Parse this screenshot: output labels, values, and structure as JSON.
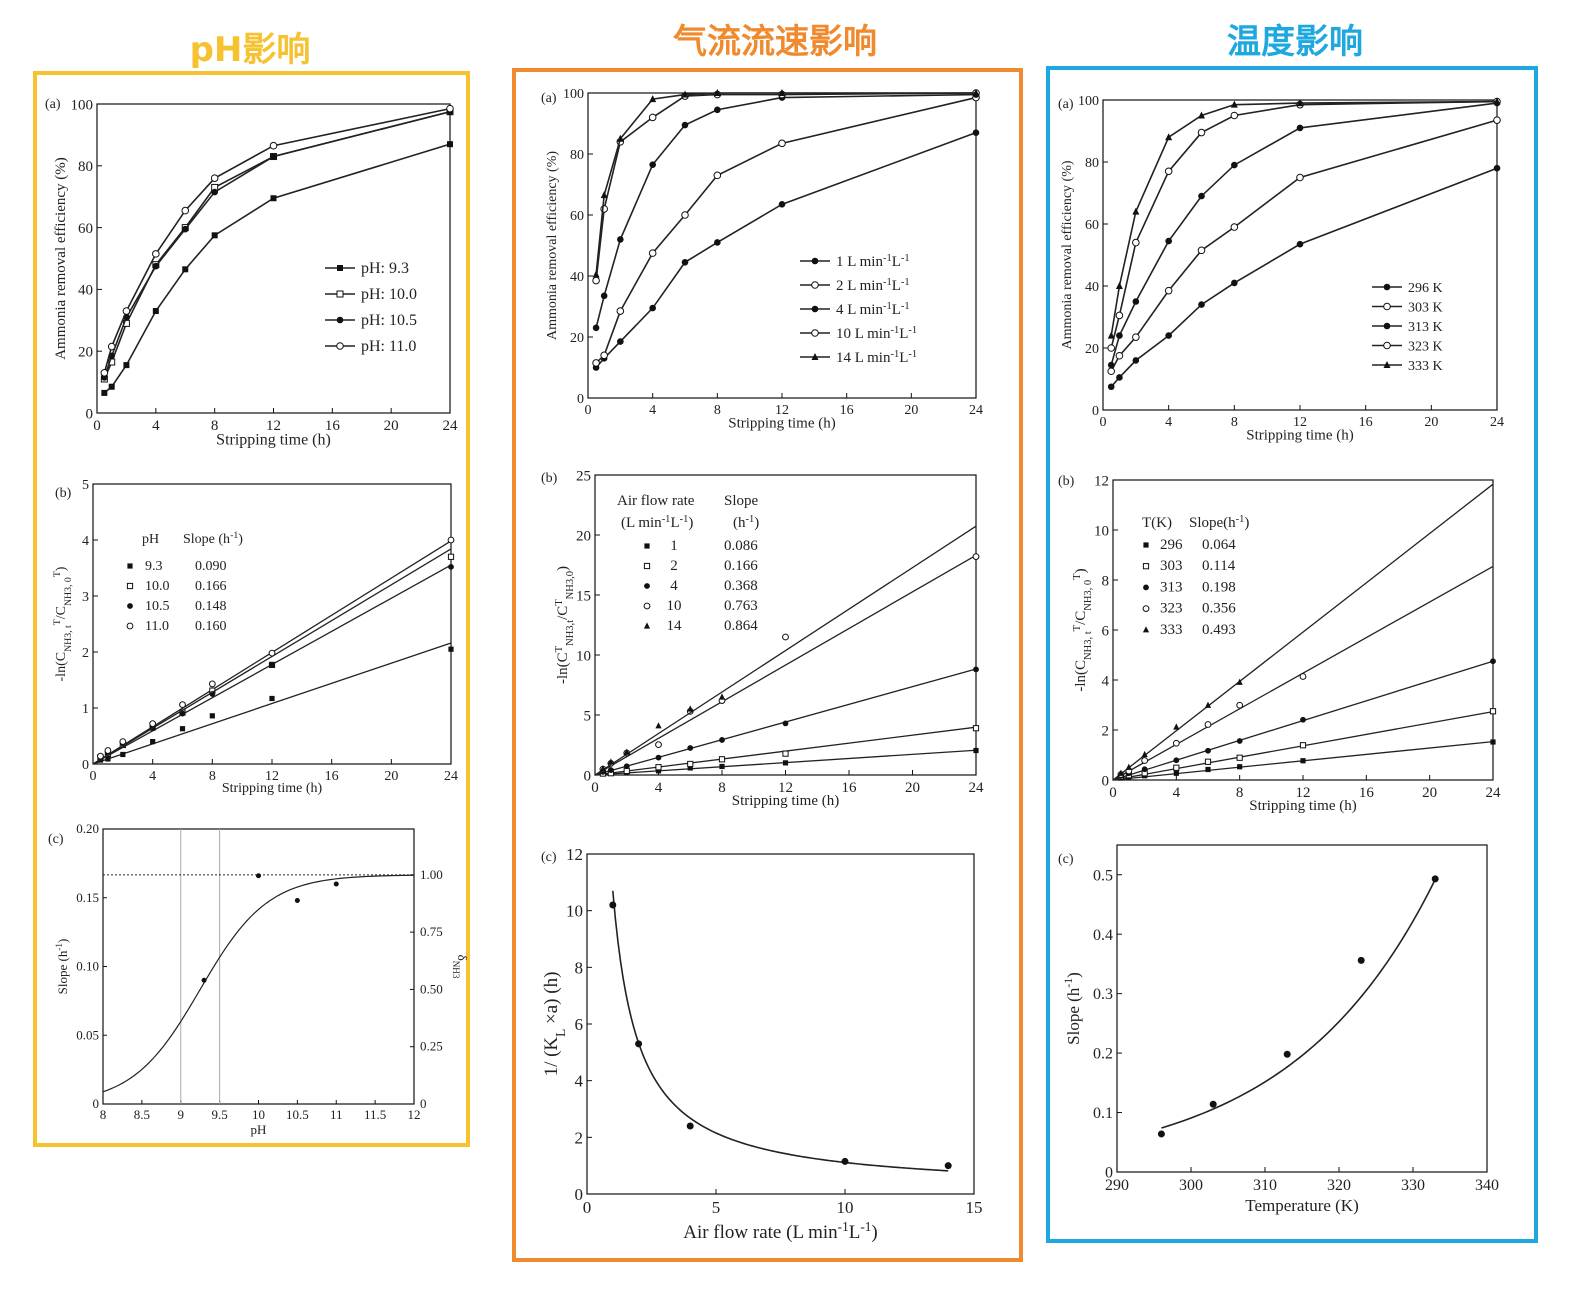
{
  "titles": [
    "pH影响",
    "气流流速影响",
    "温度影响"
  ],
  "title_colors": [
    "#f6c230",
    "#f08a2e",
    "#1ea8e0"
  ],
  "chart_data": [
    {
      "panel": "(a)",
      "type": "line",
      "xlabel": "Stripping time (h)",
      "ylabel": "Ammonia removal efficiency (%)",
      "xticks": [
        0,
        4,
        8,
        12,
        16,
        20,
        24
      ],
      "yticks": [
        0,
        20,
        40,
        60,
        80,
        100
      ],
      "xlim": [
        0,
        24
      ],
      "ylim": [
        0,
        100
      ],
      "legend_position": "right-middle",
      "series": [
        {
          "name": "pH: 9.3",
          "marker": "square",
          "x": [
            0.5,
            1,
            2,
            4,
            6,
            8,
            12,
            24
          ],
          "y": [
            6.5,
            8.5,
            15.5,
            33,
            46.5,
            57.5,
            69.5,
            87
          ]
        },
        {
          "name": "pH: 10.0",
          "marker": "open-square",
          "x": [
            0.5,
            1,
            2,
            4,
            6,
            8,
            12,
            24
          ],
          "y": [
            11,
            16.5,
            29,
            48,
            60,
            73,
            83,
            97.5
          ]
        },
        {
          "name": "pH: 10.5",
          "marker": "circle",
          "x": [
            0.5,
            1,
            2,
            4,
            6,
            8,
            12,
            24
          ],
          "y": [
            11.5,
            18.5,
            31,
            47.5,
            59.5,
            71.5,
            83,
            97.5
          ]
        },
        {
          "name": "pH: 11.0",
          "marker": "open-circle",
          "x": [
            0.5,
            1,
            2,
            4,
            6,
            8,
            12,
            24
          ],
          "y": [
            13,
            21.5,
            33,
            51.5,
            65.5,
            76,
            86.5,
            98.5
          ]
        }
      ]
    },
    {
      "panel": "(b)",
      "type": "scatter",
      "xlabel": "Stripping time (h)",
      "ylabel": "-ln(C",
      "xticks": [
        0,
        4,
        8,
        12,
        16,
        20,
        24
      ],
      "yticks": [
        0,
        1,
        2,
        3,
        4,
        5
      ],
      "xlim": [
        0,
        24
      ],
      "ylim": [
        0,
        5
      ],
      "legend_headers": [
        "pH",
        "Slope (h"
      ],
      "legend_rows": [
        [
          "9.3",
          "0.090"
        ],
        [
          "10.0",
          "0.166"
        ],
        [
          "10.5",
          "0.148"
        ],
        [
          "11.0",
          "0.160"
        ]
      ],
      "series": [
        {
          "name": "9.3",
          "marker": "square",
          "slope": 0.09,
          "x": [
            0.5,
            1,
            2,
            4,
            6,
            8,
            12,
            24
          ],
          "y": [
            0.07,
            0.09,
            0.17,
            0.4,
            0.63,
            0.86,
            1.17,
            2.05
          ]
        },
        {
          "name": "10.0",
          "marker": "open-square",
          "slope": 0.166,
          "x": [
            0.5,
            1,
            2,
            4,
            6,
            8,
            12,
            24
          ],
          "y": [
            0.12,
            0.18,
            0.34,
            0.65,
            0.92,
            1.31,
            1.77,
            3.7
          ]
        },
        {
          "name": "10.5",
          "marker": "circle",
          "slope": 0.148,
          "x": [
            0.5,
            1,
            2,
            4,
            6,
            8,
            12,
            24
          ],
          "y": [
            0.12,
            0.2,
            0.37,
            0.64,
            0.9,
            1.25,
            1.77,
            3.52
          ]
        },
        {
          "name": "11.0",
          "marker": "open-circle",
          "slope": 0.16,
          "x": [
            0.5,
            1,
            2,
            4,
            6,
            8,
            12,
            24
          ],
          "y": [
            0.14,
            0.24,
            0.4,
            0.72,
            1.06,
            1.43,
            1.98,
            4.0
          ]
        }
      ]
    },
    {
      "panel": "(c)",
      "type": "line",
      "xlabel": "pH",
      "ylabel": "Slope (h",
      "y2label": "δ",
      "xticks": [
        "8",
        "8.5",
        "9",
        "9.5",
        "10",
        "10.5",
        "11",
        "11.5",
        "12"
      ],
      "yticks": [
        "0",
        "0.05",
        "0.10",
        "0.15",
        "0.20"
      ],
      "y2ticks": [
        "0",
        "0.25",
        "0.50",
        "0.75",
        "1.00"
      ],
      "xlim": [
        8,
        12
      ],
      "ylim": [
        0,
        0.2
      ],
      "y2lim": [
        0,
        1.2
      ],
      "vlines": [
        9.0,
        9.5
      ],
      "points": {
        "x": [
          9.3,
          10.0,
          10.5,
          11.0
        ],
        "y": [
          0.09,
          0.166,
          0.148,
          0.16
        ]
      },
      "curve_pka": 9.25
    },
    {
      "panel": "(a)",
      "type": "line",
      "xlabel": "Stripping time (h)",
      "ylabel": "Ammonia removal efficiency (%)",
      "xticks": [
        0,
        4,
        8,
        12,
        16,
        20,
        24
      ],
      "yticks": [
        0,
        20,
        40,
        60,
        80,
        100
      ],
      "xlim": [
        0,
        24
      ],
      "ylim": [
        0,
        100
      ],
      "legend_position": "right-middle",
      "series": [
        {
          "name": "1 L min",
          "marker": "circle",
          "x": [
            0.5,
            1,
            2,
            4,
            6,
            8,
            12,
            24
          ],
          "y": [
            10,
            13,
            18.5,
            29.5,
            44.5,
            51,
            63.5,
            87
          ]
        },
        {
          "name": "2 L min",
          "marker": "open-circle",
          "x": [
            0.5,
            1,
            2,
            4,
            6,
            8,
            12,
            24
          ],
          "y": [
            11.5,
            14,
            28.5,
            47.5,
            60,
            73,
            83.5,
            98.5
          ]
        },
        {
          "name": "4 L min",
          "marker": "circle",
          "x": [
            0.5,
            1,
            2,
            4,
            6,
            8,
            12,
            24
          ],
          "y": [
            23,
            33.5,
            52,
            76.5,
            89.5,
            94.5,
            98.5,
            99.5
          ]
        },
        {
          "name": "10 L min",
          "marker": "open-circle",
          "x": [
            0.5,
            1,
            2,
            4,
            6,
            8,
            12,
            24
          ],
          "y": [
            38.5,
            62,
            84,
            92,
            99,
            99.5,
            99.5,
            100
          ]
        },
        {
          "name": "14 L min",
          "marker": "triangle",
          "x": [
            0.5,
            1,
            2,
            4,
            6,
            8,
            12,
            24
          ],
          "y": [
            40.5,
            66.5,
            85,
            98,
            99.5,
            100,
            100,
            100
          ]
        }
      ],
      "legend_unit": "L"
    },
    {
      "panel": "(b)",
      "type": "scatter",
      "xlabel": "Stripping time (h)",
      "ylabel": "-ln(C",
      "xticks": [
        0,
        4,
        8,
        12,
        16,
        20,
        24
      ],
      "yticks": [
        0,
        5,
        10,
        15,
        20,
        25
      ],
      "xlim": [
        0,
        24
      ],
      "ylim": [
        0,
        25
      ],
      "legend_headers": [
        "Air flow rate",
        "Slope",
        "(L min",
        "(h"
      ],
      "legend_rows": [
        [
          "1",
          "0.086"
        ],
        [
          "2",
          "0.166"
        ],
        [
          "4",
          "0.368"
        ],
        [
          "10",
          "0.763"
        ],
        [
          "14",
          "0.864"
        ]
      ],
      "series": [
        {
          "name": "1",
          "marker": "square",
          "slope": 0.086,
          "x": [
            0.5,
            1,
            2,
            4,
            6,
            8,
            12,
            24
          ],
          "y": [
            0.1,
            0.13,
            0.21,
            0.35,
            0.59,
            0.71,
            1.01,
            2.04
          ]
        },
        {
          "name": "2",
          "marker": "open-square",
          "slope": 0.166,
          "x": [
            0.5,
            1,
            2,
            4,
            6,
            8,
            12,
            24
          ],
          "y": [
            0.12,
            0.15,
            0.34,
            0.65,
            0.92,
            1.31,
            1.78,
            3.9
          ]
        },
        {
          "name": "4",
          "marker": "circle",
          "slope": 0.368,
          "x": [
            0.5,
            1,
            2,
            4,
            6,
            8,
            12,
            24
          ],
          "y": [
            0.26,
            0.41,
            0.73,
            1.45,
            2.25,
            2.92,
            4.3,
            8.8
          ]
        },
        {
          "name": "10",
          "marker": "open-circle",
          "slope": 0.763,
          "x": [
            0.5,
            1,
            2,
            4,
            6,
            8,
            12,
            24
          ],
          "y": [
            0.49,
            0.97,
            1.83,
            2.53,
            5.3,
            6.2,
            11.5,
            18.2
          ]
        },
        {
          "name": "14",
          "marker": "triangle",
          "slope": 0.864,
          "x": [
            0.5,
            1,
            2,
            4,
            6,
            8
          ],
          "y": [
            0.52,
            1.09,
            1.9,
            4.1,
            5.5,
            6.5
          ]
        }
      ]
    },
    {
      "panel": "(c)",
      "type": "line",
      "xlabel": "Air flow rate (L min",
      "ylabel": "1/ (K",
      "xticks": [
        0,
        5,
        10,
        15
      ],
      "yticks": [
        0,
        2,
        4,
        6,
        8,
        10,
        12
      ],
      "xlim": [
        0,
        15
      ],
      "ylim": [
        0,
        12
      ],
      "points": {
        "x": [
          1,
          2,
          4,
          10,
          14
        ],
        "y": [
          10.2,
          5.3,
          2.4,
          1.15,
          1.0
        ]
      }
    },
    {
      "panel": "(a)",
      "type": "line",
      "xlabel": "Stripping time (h)",
      "ylabel": "Ammonia removal efficiency (%)",
      "xticks": [
        0,
        4,
        8,
        12,
        16,
        20,
        24
      ],
      "yticks": [
        0,
        20,
        40,
        60,
        80,
        100
      ],
      "xlim": [
        0,
        24
      ],
      "ylim": [
        0,
        100
      ],
      "legend_position": "right-middle",
      "series": [
        {
          "name": "296 K",
          "marker": "circle",
          "x": [
            0.5,
            1,
            2,
            4,
            6,
            8,
            12,
            24
          ],
          "y": [
            7.5,
            10.5,
            16,
            24,
            34,
            41,
            53.5,
            78
          ]
        },
        {
          "name": "303 K",
          "marker": "open-circle",
          "x": [
            0.5,
            1,
            2,
            4,
            6,
            8,
            12,
            24
          ],
          "y": [
            12.5,
            17.5,
            23.5,
            38.5,
            51.5,
            59,
            75,
            93.5
          ]
        },
        {
          "name": "313 K",
          "marker": "circle",
          "x": [
            0.5,
            1,
            2,
            4,
            6,
            8,
            12,
            24
          ],
          "y": [
            14.5,
            24,
            35,
            54.5,
            69,
            79,
            91,
            99
          ]
        },
        {
          "name": "323 K",
          "marker": "open-circle",
          "x": [
            0.5,
            1,
            2,
            4,
            6,
            8,
            12,
            24
          ],
          "y": [
            20,
            30.5,
            54,
            77,
            89.5,
            95,
            98.5,
            99.5
          ]
        },
        {
          "name": "333 K",
          "marker": "triangle",
          "x": [
            0.5,
            1,
            2,
            4,
            6,
            8,
            12,
            24
          ],
          "y": [
            24,
            40,
            64,
            88,
            95,
            98.5,
            99,
            99.5
          ]
        }
      ]
    },
    {
      "panel": "(b)",
      "type": "scatter",
      "xlabel": "Stripping time (h)",
      "ylabel": "-ln(C",
      "xticks": [
        0,
        4,
        8,
        12,
        16,
        20,
        24
      ],
      "yticks": [
        0,
        2,
        4,
        6,
        8,
        10,
        12
      ],
      "xlim": [
        0,
        24
      ],
      "ylim": [
        0,
        12
      ],
      "legend_headers": [
        "T(K)",
        "Slope(h"
      ],
      "legend_rows": [
        [
          "296",
          "0.064"
        ],
        [
          "303",
          "0.114"
        ],
        [
          "313",
          "0.198"
        ],
        [
          "323",
          "0.356"
        ],
        [
          "333",
          "0.493"
        ]
      ],
      "series": [
        {
          "name": "296",
          "marker": "square",
          "slope": 0.064,
          "x": [
            0.5,
            1,
            2,
            4,
            6,
            8,
            12,
            24
          ],
          "y": [
            0.08,
            0.11,
            0.17,
            0.27,
            0.42,
            0.53,
            0.77,
            1.52
          ]
        },
        {
          "name": "303",
          "marker": "open-square",
          "slope": 0.114,
          "x": [
            0.5,
            1,
            2,
            4,
            6,
            8,
            12,
            24
          ],
          "y": [
            0.13,
            0.19,
            0.27,
            0.49,
            0.73,
            0.89,
            1.39,
            2.75
          ]
        },
        {
          "name": "313",
          "marker": "circle",
          "slope": 0.198,
          "x": [
            0.5,
            1,
            2,
            4,
            6,
            8,
            12,
            24
          ],
          "y": [
            0.16,
            0.27,
            0.43,
            0.79,
            1.17,
            1.56,
            2.41,
            4.75
          ]
        },
        {
          "name": "323",
          "marker": "open-circle",
          "slope": 0.356,
          "x": [
            0.5,
            1,
            2,
            4,
            6,
            8,
            12
          ],
          "y": [
            0.22,
            0.36,
            0.78,
            1.47,
            2.22,
            2.99,
            4.14
          ]
        },
        {
          "name": "333",
          "marker": "triangle",
          "slope": 0.493,
          "x": [
            0.5,
            1,
            2,
            4,
            6,
            8
          ],
          "y": [
            0.27,
            0.51,
            1.02,
            2.12,
            2.99,
            3.91
          ]
        }
      ]
    },
    {
      "panel": "(c)",
      "type": "line",
      "xlabel": "Temperature (K)",
      "ylabel": "Slope (h",
      "xticks": [
        290,
        300,
        310,
        320,
        330,
        340
      ],
      "yticks": [
        0,
        0.1,
        0.2,
        0.3,
        0.4,
        0.5
      ],
      "xlim": [
        290,
        340
      ],
      "ylim": [
        0,
        0.55
      ],
      "points": {
        "x": [
          296,
          303,
          313,
          323,
          333
        ],
        "y": [
          0.064,
          0.114,
          0.198,
          0.356,
          0.493
        ]
      }
    }
  ]
}
